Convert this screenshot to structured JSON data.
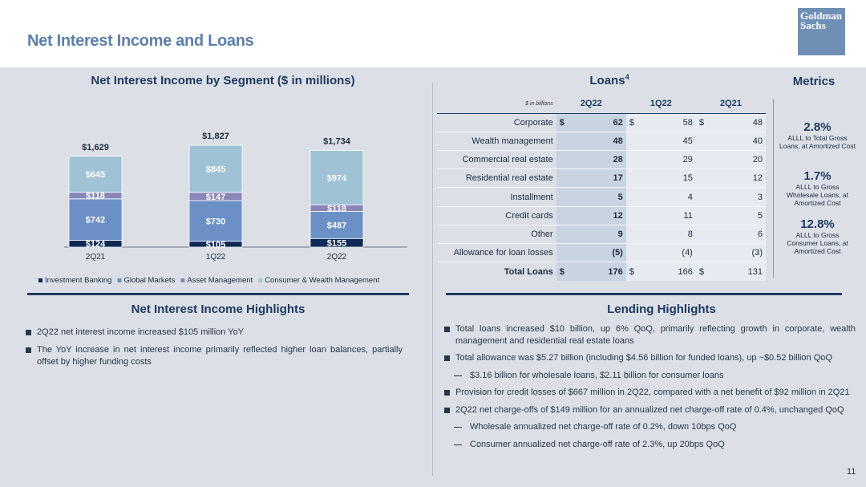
{
  "page": {
    "title": "Net Interest Income and Loans",
    "logo_line1": "Goldman",
    "logo_line2": "Sachs",
    "page_number": "11"
  },
  "colors": {
    "investment_banking": "#0e2a55",
    "global_markets": "#6a90c5",
    "asset_management": "#8a86b8",
    "consumer_wealth": "#9fc3d4",
    "title_blue": "#5b7fa8"
  },
  "chart_title": "Net Interest Income by Segment ($ in millions)",
  "chart_data": {
    "type": "bar",
    "stacked": true,
    "categories": [
      "2Q21",
      "1Q22",
      "2Q22"
    ],
    "series": [
      {
        "name": "Investment Banking",
        "values": [
          124,
          105,
          155
        ],
        "labels": [
          "$124",
          "$105",
          "$155"
        ]
      },
      {
        "name": "Global Markets",
        "values": [
          742,
          730,
          487
        ],
        "labels": [
          "$742",
          "$730",
          "$487"
        ]
      },
      {
        "name": "Asset Management",
        "values": [
          118,
          147,
          118
        ],
        "labels": [
          "$118",
          "$147",
          "$118"
        ]
      },
      {
        "name": "Consumer & Wealth Management",
        "values": [
          645,
          845,
          974
        ],
        "labels": [
          "$645",
          "$845",
          "$974"
        ]
      }
    ],
    "totals": [
      "$1,629",
      "$1,827",
      "$1,734"
    ],
    "ylim": [
      0,
      2000
    ],
    "legend": "bottom"
  },
  "loans": {
    "title": "Loans",
    "footnote": "4",
    "units": "$ in billions",
    "columns": [
      "2Q22",
      "1Q22",
      "2Q21"
    ],
    "rows": [
      {
        "label": "Corporate",
        "cur": "$",
        "v": [
          "62",
          "58",
          "48"
        ]
      },
      {
        "label": "Wealth management",
        "cur": "",
        "v": [
          "48",
          "45",
          "40"
        ]
      },
      {
        "label": "Commercial real estate",
        "cur": "",
        "v": [
          "28",
          "29",
          "20"
        ]
      },
      {
        "label": "Residential real estate",
        "cur": "",
        "v": [
          "17",
          "15",
          "12"
        ]
      },
      {
        "label": "Installment",
        "cur": "",
        "v": [
          "5",
          "4",
          "3"
        ]
      },
      {
        "label": "Credit cards",
        "cur": "",
        "v": [
          "12",
          "11",
          "5"
        ]
      },
      {
        "label": "Other",
        "cur": "",
        "v": [
          "9",
          "8",
          "6"
        ]
      },
      {
        "label": "Allowance for loan losses",
        "cur": "",
        "v": [
          "(5)",
          "(4)",
          "(3)"
        ]
      }
    ],
    "total": {
      "label": "Total Loans",
      "cur": "$",
      "v": [
        "176",
        "166",
        "131"
      ]
    }
  },
  "metrics": {
    "title": "Metrics",
    "items": [
      {
        "value": "2.8%",
        "desc": "ALLL to Total Gross Loans, at Amortized Cost"
      },
      {
        "value": "1.7%",
        "desc": "ALLL to Gross Wholesale Loans, at Amortized Cost"
      },
      {
        "value": "12.8%",
        "desc": "ALLL to Gross Consumer Loans, at Amortized Cost"
      }
    ]
  },
  "nii_highlights": {
    "title": "Net Interest Income Highlights",
    "bullets": [
      "2Q22 net interest income increased $105 million YoY",
      "The YoY increase in net interest income primarily reflected higher loan balances, partially offset by higher funding costs"
    ]
  },
  "lending_highlights": {
    "title": "Lending Highlights",
    "bullets": [
      "Total loans increased $10 billion, up 6% QoQ, primarily reflecting growth in corporate, wealth management and residential real estate loans",
      "Total allowance was $5.27 billion (including $4.56 billion for funded loans), up ~$0.52 billion QoQ",
      "$3.16 billion for wholesale loans, $2.11 billion for consumer loans",
      "Provision for credit losses of $667 million in 2Q22, compared with a net benefit of $92 million in 2Q21",
      "2Q22 net charge-offs of $149 million for an annualized net charge-off rate of 0.4%, unchanged QoQ",
      "Wholesale annualized net charge-off rate of 0.2%, down 10bps QoQ",
      "Consumer annualized net charge-off rate of 2.3%, up 20bps QoQ"
    ]
  }
}
